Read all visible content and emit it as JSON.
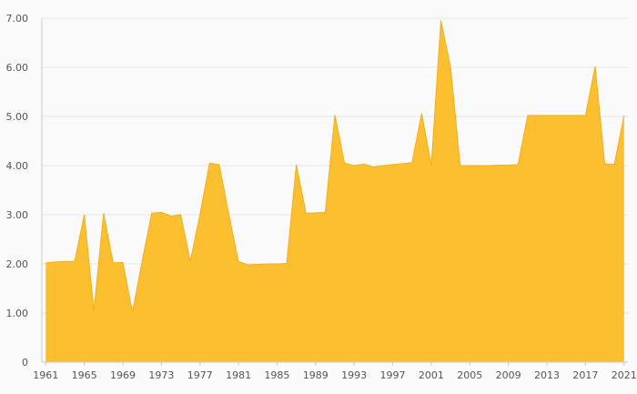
{
  "chart_data": {
    "type": "area",
    "title": "",
    "xlabel": "",
    "ylabel": "",
    "x": [
      1961,
      1962,
      1963,
      1964,
      1965,
      1966,
      1967,
      1968,
      1969,
      1970,
      1971,
      1972,
      1973,
      1974,
      1975,
      1976,
      1977,
      1978,
      1979,
      1980,
      1981,
      1982,
      1983,
      1984,
      1985,
      1986,
      1987,
      1988,
      1989,
      1990,
      1991,
      1992,
      1993,
      1994,
      1995,
      1996,
      1997,
      1998,
      1999,
      2000,
      2001,
      2002,
      2003,
      2004,
      2005,
      2006,
      2007,
      2008,
      2009,
      2010,
      2011,
      2012,
      2013,
      2014,
      2015,
      2016,
      2017,
      2018,
      2019,
      2020,
      2021
    ],
    "series": [
      {
        "values": [
          2.02,
          2.04,
          2.05,
          2.05,
          3.0,
          1.04,
          3.03,
          2.02,
          2.03,
          1.02,
          2.05,
          3.03,
          3.05,
          2.97,
          3.0,
          2.05,
          3.0,
          4.05,
          4.02,
          3.0,
          2.05,
          1.98,
          1.99,
          2.0,
          2.0,
          2.01,
          4.02,
          3.03,
          3.04,
          3.05,
          5.03,
          4.05,
          4.0,
          4.03,
          3.97,
          4.0,
          4.02,
          4.04,
          4.06,
          5.06,
          4.0,
          6.95,
          6.0,
          4.0,
          4.0,
          4.0,
          4.0,
          4.01,
          4.01,
          4.02,
          5.02,
          5.02,
          5.02,
          5.02,
          5.02,
          5.02,
          5.02,
          6.02,
          4.03,
          4.03,
          5.02
        ]
      }
    ],
    "xlim": [
      1960.6,
      2021.4
    ],
    "ylim": [
      0,
      7
    ],
    "y_ticks": [
      "0",
      "1.00",
      "2.00",
      "3.00",
      "4.00",
      "5.00",
      "6.00",
      "7.00"
    ],
    "x_ticks": [
      "1961",
      "1965",
      "1969",
      "1973",
      "1977",
      "1981",
      "1985",
      "1989",
      "1993",
      "1997",
      "2001",
      "2005",
      "2009",
      "2013",
      "2017",
      "2021"
    ],
    "grid": true,
    "colors": {
      "fill": "#fbbf2f",
      "stroke": "#f5ae1a",
      "grid": "#e6e6e6"
    }
  }
}
